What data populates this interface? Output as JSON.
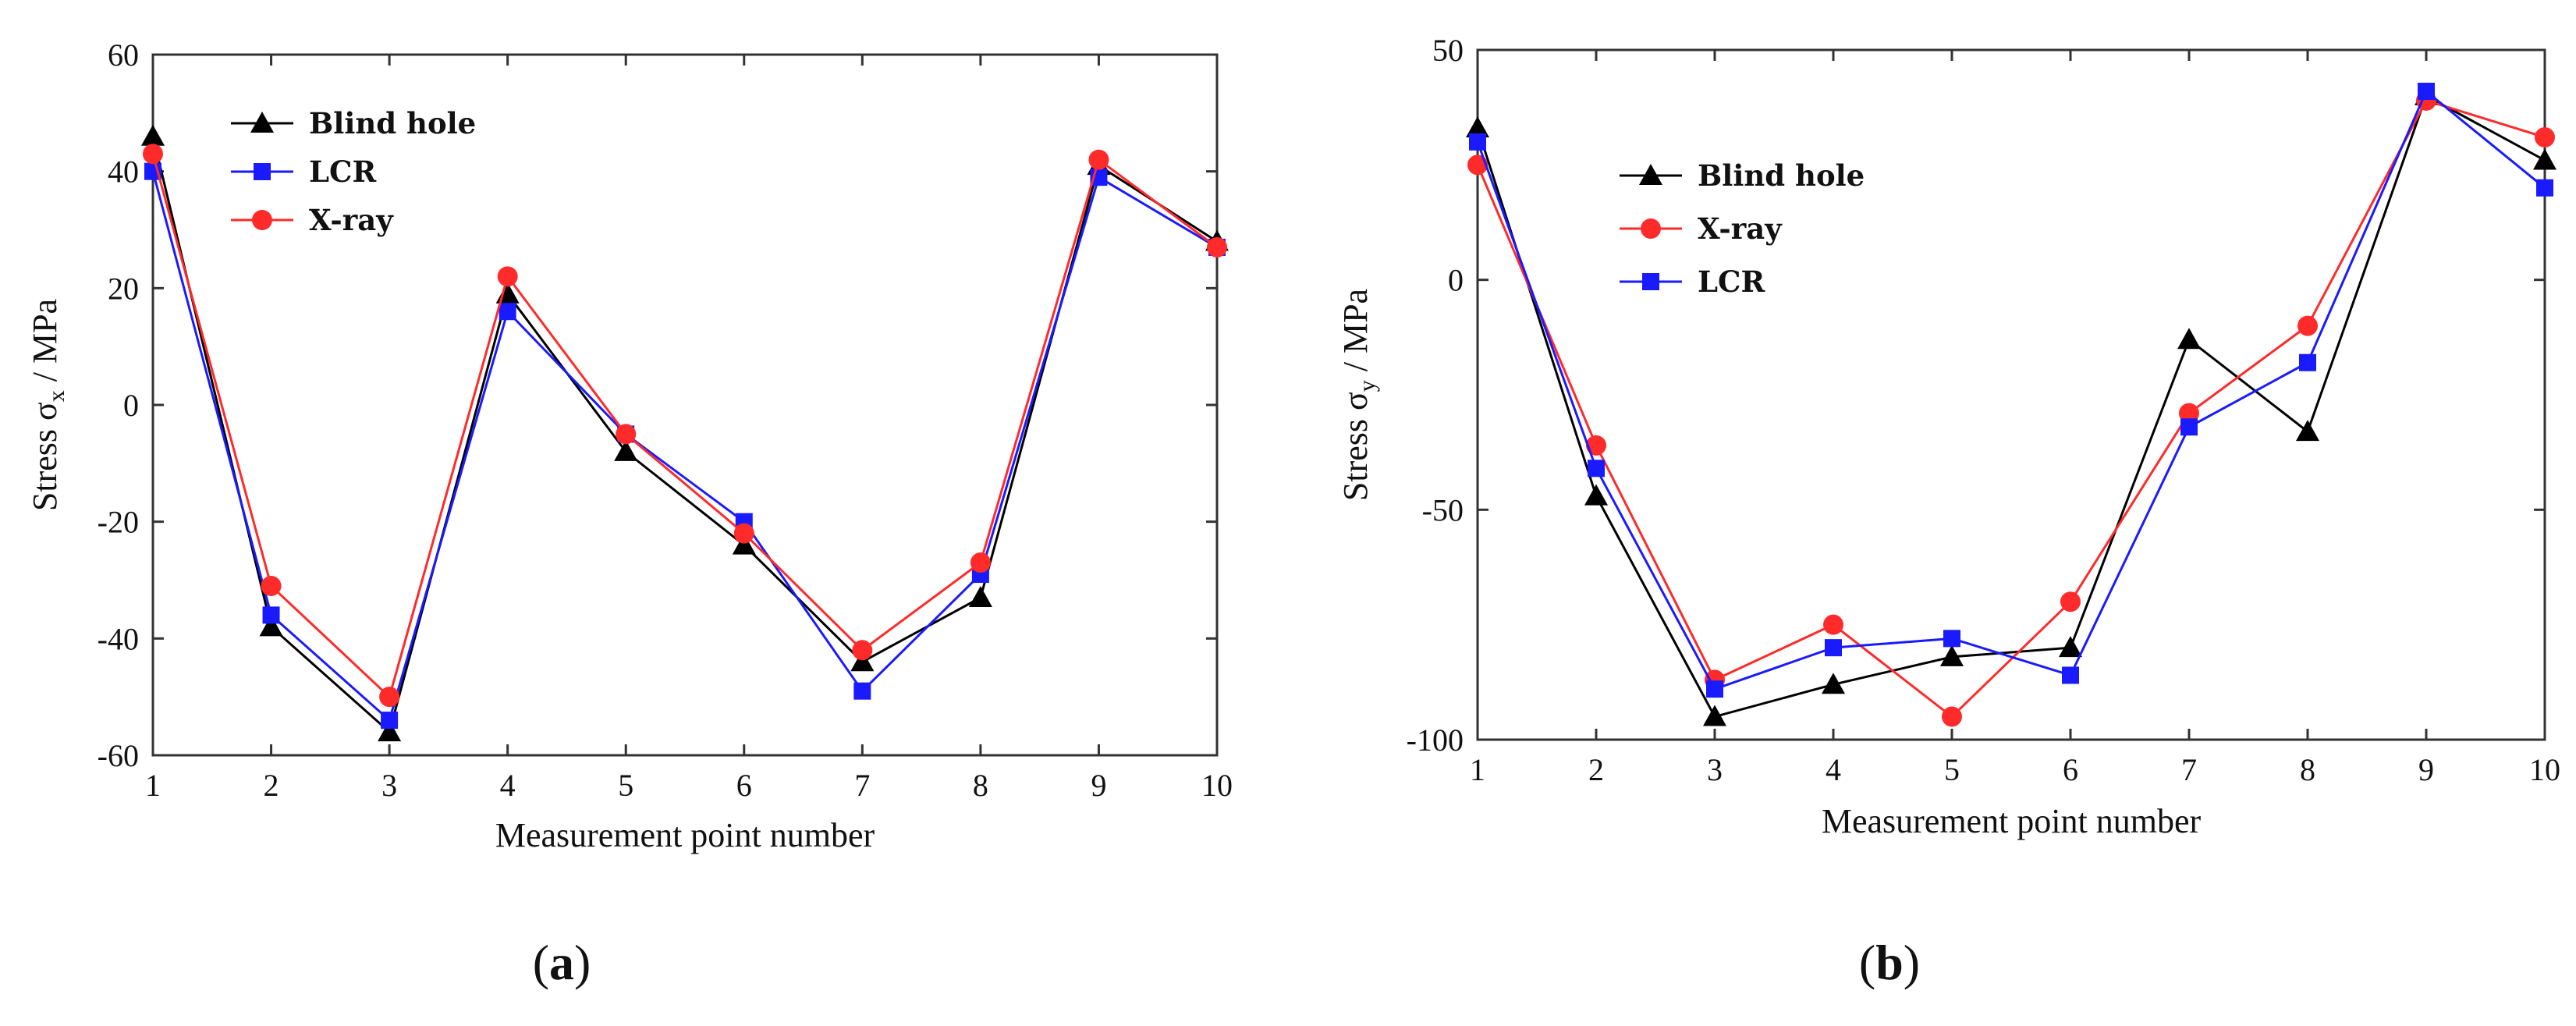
{
  "chart_data": [
    {
      "type": "line",
      "panel_label": "a",
      "xlabel": "Measurement point  number",
      "ylabel_prefix": "Stress σ",
      "ylabel_subscript": "x",
      "ylabel_suffix": " / MPa",
      "x": [
        1,
        2,
        3,
        4,
        5,
        6,
        7,
        8,
        9,
        10
      ],
      "xlim": [
        1,
        10
      ],
      "ylim": [
        -60,
        60
      ],
      "yticks": [
        -60,
        -40,
        -20,
        0,
        20,
        40,
        60
      ],
      "legend_position": "top-left",
      "series": [
        {
          "name": "Blind hole",
          "color": "#000000",
          "marker": "triangle",
          "values": [
            46,
            -38,
            -56,
            19,
            -8,
            -24,
            -44,
            -33,
            41,
            28
          ]
        },
        {
          "name": "LCR",
          "color": "#1a1aff",
          "marker": "square",
          "values": [
            40,
            -36,
            -54,
            16,
            -5,
            -20,
            -49,
            -29,
            39,
            27
          ]
        },
        {
          "name": "X-ray",
          "color": "#ff2a2a",
          "marker": "circle",
          "values": [
            43,
            -31,
            -50,
            22,
            -5,
            -22,
            -42,
            -27,
            42,
            27
          ]
        }
      ]
    },
    {
      "type": "line",
      "panel_label": "b",
      "xlabel": "Measurement point  number",
      "ylabel_prefix": "Stress σ",
      "ylabel_subscript": "y",
      "ylabel_suffix": " / MPa",
      "x": [
        1,
        2,
        3,
        4,
        5,
        6,
        7,
        8,
        9,
        10
      ],
      "xlim": [
        1,
        10
      ],
      "ylim": [
        -100,
        50
      ],
      "yticks": [
        -100,
        -50,
        0,
        50
      ],
      "legend_position": "top-left",
      "series": [
        {
          "name": "Blind hole",
          "color": "#000000",
          "marker": "triangle",
          "values": [
            33,
            -47,
            -95,
            -88,
            -82,
            -80,
            -13,
            -33,
            40,
            26
          ]
        },
        {
          "name": "X-ray",
          "color": "#ff2a2a",
          "marker": "circle",
          "values": [
            25,
            -36,
            -87,
            -75,
            -95,
            -70,
            -29,
            -10,
            39,
            31
          ]
        },
        {
          "name": "LCR",
          "color": "#1a1aff",
          "marker": "square",
          "values": [
            30,
            -41,
            -89,
            -80,
            -78,
            -86,
            -32,
            -18,
            41,
            20
          ]
        }
      ]
    }
  ]
}
